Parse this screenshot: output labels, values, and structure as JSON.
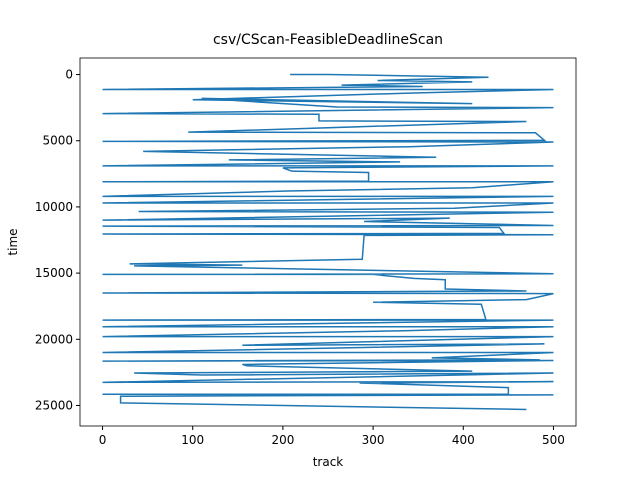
{
  "chart_data": {
    "type": "line",
    "title": "csv/CScan-FeasibleDeadlineScan",
    "x_label": "track",
    "y_label": "time",
    "xlim": [
      -25,
      525
    ],
    "ylim": [
      26550,
      -1250
    ],
    "xticks": [
      0,
      100,
      200,
      300,
      400,
      500
    ],
    "yticks": [
      0,
      5000,
      10000,
      15000,
      20000,
      25000
    ],
    "color": "#1f77b4",
    "x": [
      208,
      250,
      428,
      305,
      410,
      265,
      355,
      0,
      500,
      340,
      100,
      410,
      110,
      260,
      500,
      0,
      240,
      240,
      470,
      95,
      480,
      490,
      0,
      500,
      340,
      45,
      370,
      140,
      330,
      0,
      500,
      200,
      210,
      295,
      295,
      0,
      500,
      410,
      205,
      0,
      500,
      0,
      500,
      390,
      40,
      500,
      0,
      385,
      290,
      500,
      0,
      440,
      445,
      0,
      500,
      290,
      288,
      30,
      155,
      35,
      500,
      0,
      300,
      345,
      380,
      380,
      470,
      0,
      500,
      470,
      300,
      420,
      425,
      0,
      500,
      0,
      500,
      335,
      0,
      500,
      155,
      490,
      0,
      500,
      365,
      485,
      0,
      500,
      155,
      160,
      345,
      410,
      35,
      110,
      500,
      0,
      500,
      285,
      450,
      450,
      0,
      500,
      20,
      20,
      470
    ],
    "y": [
      0,
      0,
      200,
      450,
      550,
      800,
      900,
      1130,
      1130,
      1400,
      1900,
      2200,
      1800,
      2450,
      2500,
      2950,
      3000,
      3500,
      3550,
      4350,
      4400,
      4970,
      5050,
      5100,
      5450,
      5800,
      6250,
      6450,
      6600,
      6900,
      6900,
      7050,
      7300,
      7400,
      8050,
      8100,
      8100,
      8550,
      8800,
      9200,
      9200,
      9700,
      9700,
      10100,
      10350,
      10400,
      11000,
      10850,
      11100,
      11400,
      11450,
      11550,
      12000,
      12050,
      12100,
      12150,
      13950,
      14300,
      14400,
      14450,
      15050,
      15100,
      15100,
      15400,
      15500,
      16200,
      16350,
      16500,
      16550,
      17000,
      17200,
      17350,
      18500,
      18550,
      18550,
      19050,
      19050,
      19350,
      19800,
      19800,
      20450,
      20350,
      21000,
      21000,
      21400,
      21550,
      21650,
      21600,
      21900,
      22000,
      22300,
      22400,
      22550,
      22700,
      22550,
      23250,
      23200,
      23300,
      23650,
      24150,
      24150,
      24200,
      24300,
      24800,
      25300
    ]
  }
}
